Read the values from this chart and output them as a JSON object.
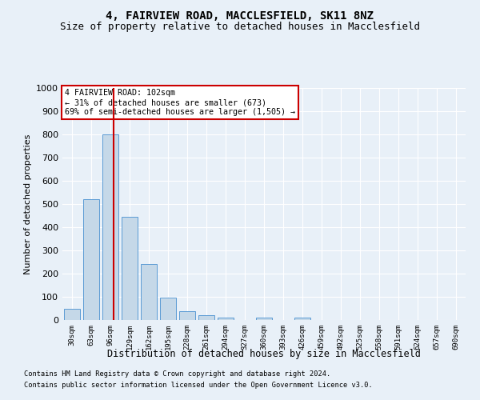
{
  "title": "4, FAIRVIEW ROAD, MACCLESFIELD, SK11 8NZ",
  "subtitle": "Size of property relative to detached houses in Macclesfield",
  "xlabel": "Distribution of detached houses by size in Macclesfield",
  "ylabel": "Number of detached properties",
  "bar_labels": [
    "30sqm",
    "63sqm",
    "96sqm",
    "129sqm",
    "162sqm",
    "195sqm",
    "228sqm",
    "261sqm",
    "294sqm",
    "327sqm",
    "360sqm",
    "393sqm",
    "426sqm",
    "459sqm",
    "492sqm",
    "525sqm",
    "558sqm",
    "591sqm",
    "624sqm",
    "657sqm",
    "690sqm"
  ],
  "bar_values": [
    50,
    520,
    800,
    445,
    240,
    98,
    38,
    22,
    12,
    0,
    12,
    0,
    12,
    0,
    0,
    0,
    0,
    0,
    0,
    0,
    0
  ],
  "bar_color": "#c5d8e8",
  "bar_edgecolor": "#5b9bd5",
  "marker_label": "4 FAIRVIEW ROAD: 102sqm",
  "annotation_line1": "← 31% of detached houses are smaller (673)",
  "annotation_line2": "69% of semi-detached houses are larger (1,505) →",
  "ylim": [
    0,
    1000
  ],
  "yticks": [
    0,
    100,
    200,
    300,
    400,
    500,
    600,
    700,
    800,
    900,
    1000
  ],
  "footnote1": "Contains HM Land Registry data © Crown copyright and database right 2024.",
  "footnote2": "Contains public sector information licensed under the Open Government Licence v3.0.",
  "background_color": "#e8f0f8",
  "plot_bg_color": "#e8f0f8",
  "grid_color": "#ffffff",
  "marker_color": "#cc0000",
  "title_fontsize": 10,
  "subtitle_fontsize": 9,
  "annotation_box_edgecolor": "#cc0000",
  "annotation_box_facecolor": "#ffffff"
}
